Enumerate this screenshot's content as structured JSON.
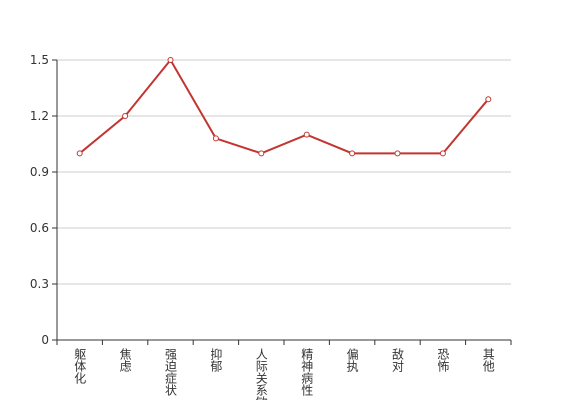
{
  "chart_data": {
    "type": "line",
    "categories": [
      "躯体化",
      "焦虑",
      "强迫症状",
      "抑郁",
      "人际关系敏感",
      "精神病性",
      "偏执",
      "敌对",
      "恐怖",
      "其他"
    ],
    "values": [
      1.0,
      1.2,
      1.5,
      1.08,
      1.0,
      1.1,
      1.0,
      1.0,
      1.0,
      1.29
    ],
    "color": "#c23531",
    "ylim": [
      0,
      1.5
    ],
    "yticks": [
      0,
      0.3,
      0.6,
      0.9,
      1.2,
      1.5
    ],
    "grid": true
  }
}
